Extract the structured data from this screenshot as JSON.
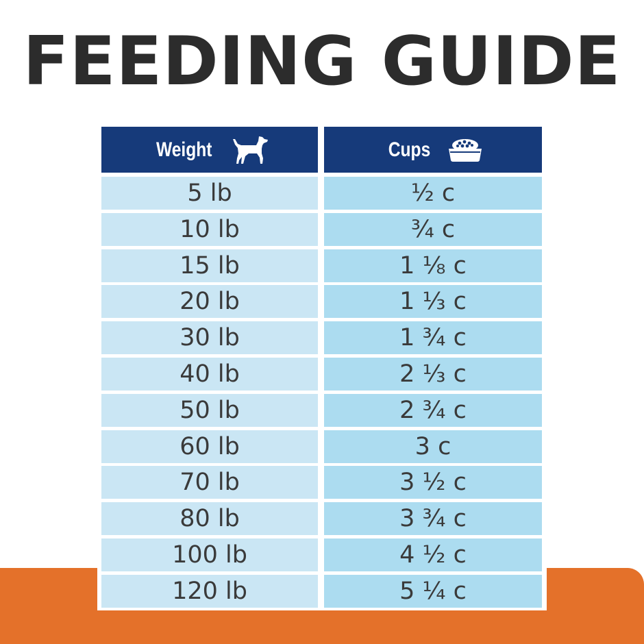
{
  "title": "FEEDING GUIDE",
  "colors": {
    "header_bg": "#163a7a",
    "weight_cell": "#cae6f4",
    "cups_cell": "#acdcf0",
    "accent_orange": "#e4712a",
    "title_text": "#2c2c2c"
  },
  "table": {
    "headers": {
      "weight": "Weight",
      "weight_icon": "dog-icon",
      "cups": "Cups",
      "cups_icon": "food-bowl-icon"
    },
    "rows": [
      {
        "weight": "5 lb",
        "cups": "½ c"
      },
      {
        "weight": "10 lb",
        "cups": "¾ c"
      },
      {
        "weight": "15 lb",
        "cups": "1 ⅛ c"
      },
      {
        "weight": "20 lb",
        "cups": "1 ⅓ c"
      },
      {
        "weight": "30 lb",
        "cups": "1 ¾ c"
      },
      {
        "weight": "40 lb",
        "cups": "2 ⅓ c"
      },
      {
        "weight": "50 lb",
        "cups": "2 ¾ c"
      },
      {
        "weight": "60 lb",
        "cups": "3 c"
      },
      {
        "weight": "70 lb",
        "cups": "3 ½ c"
      },
      {
        "weight": "80 lb",
        "cups": "3 ¾ c"
      },
      {
        "weight": "100 lb",
        "cups": "4 ½ c"
      },
      {
        "weight": "120 lb",
        "cups": "5 ¼ c"
      }
    ]
  }
}
